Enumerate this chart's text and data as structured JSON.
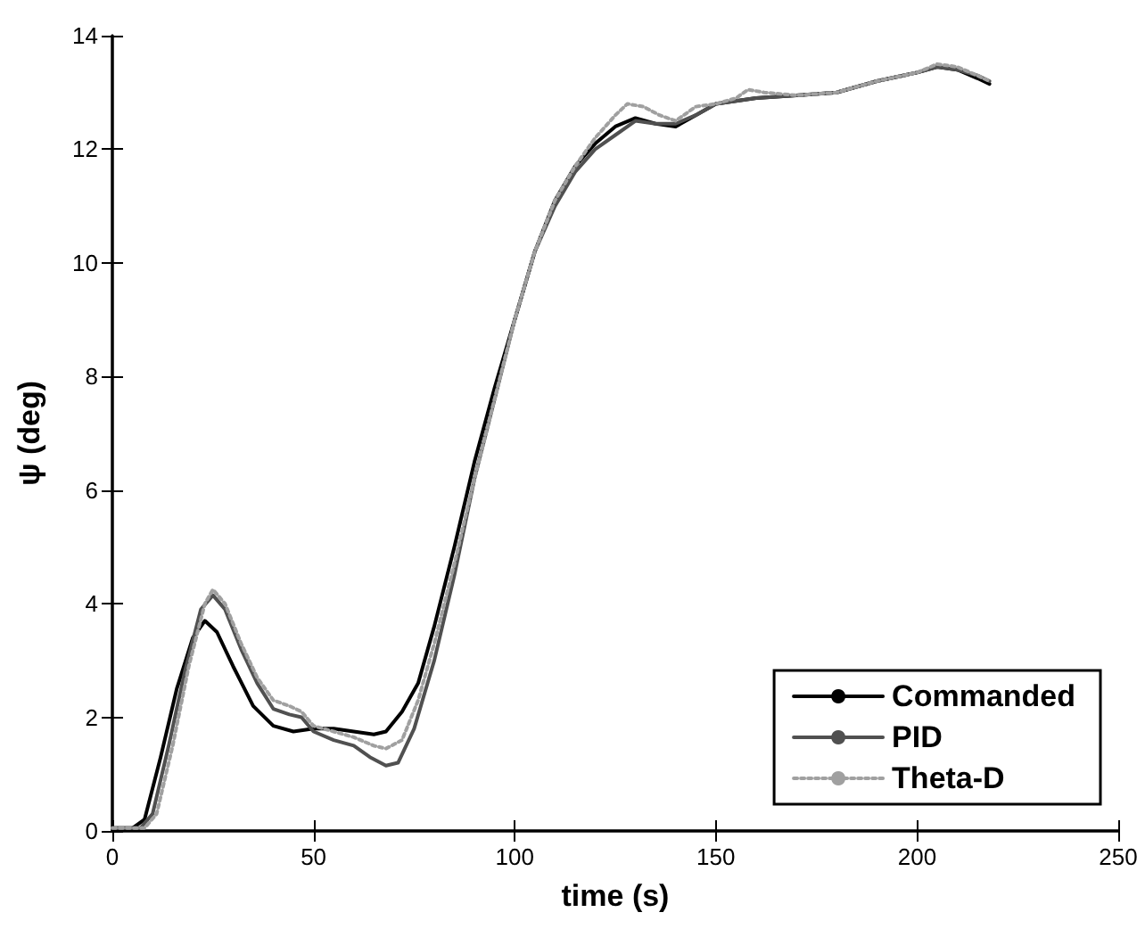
{
  "chart_data": {
    "type": "line",
    "xlabel": "time (s)",
    "ylabel": "ψ (deg)",
    "xlim": [
      0,
      250
    ],
    "xticks": [
      0,
      50,
      100,
      150,
      200,
      250
    ],
    "ylim": [
      0,
      14
    ],
    "yticks": [
      0,
      2,
      4,
      6,
      8,
      10,
      12,
      14
    ],
    "grid": false,
    "legend": "bottom right",
    "marker": "none",
    "series": [
      {
        "name": "Commanded",
        "color": "#000000",
        "line_style": "solid",
        "x": [
          0,
          5,
          8,
          12,
          16,
          20,
          23,
          26,
          30,
          35,
          40,
          45,
          50,
          55,
          60,
          65,
          68,
          72,
          76,
          80,
          85,
          90,
          95,
          100,
          105,
          110,
          115,
          120,
          125,
          130,
          135,
          140,
          145,
          150,
          160,
          170,
          180,
          190,
          200,
          205,
          210,
          215,
          218
        ],
        "values": [
          0.05,
          0.05,
          0.2,
          1.3,
          2.5,
          3.4,
          3.7,
          3.5,
          2.9,
          2.2,
          1.85,
          1.75,
          1.8,
          1.8,
          1.75,
          1.7,
          1.75,
          2.1,
          2.6,
          3.6,
          5.0,
          6.5,
          7.8,
          9.0,
          10.2,
          11.1,
          11.7,
          12.1,
          12.4,
          12.55,
          12.45,
          12.4,
          12.6,
          12.8,
          12.9,
          12.95,
          13.0,
          13.2,
          13.35,
          13.45,
          13.4,
          13.25,
          13.15
        ]
      },
      {
        "name": "PID",
        "color": "#505050",
        "line_style": "solid",
        "x": [
          0,
          7,
          10,
          14,
          18,
          22,
          25,
          28,
          32,
          36,
          40,
          44,
          47,
          50,
          55,
          60,
          64,
          68,
          71,
          75,
          80,
          85,
          90,
          95,
          100,
          105,
          110,
          115,
          120,
          125,
          130,
          135,
          140,
          145,
          150,
          160,
          170,
          180,
          190,
          200,
          205,
          210,
          215,
          218
        ],
        "values": [
          0.05,
          0.05,
          0.3,
          1.5,
          2.8,
          3.9,
          4.15,
          3.9,
          3.2,
          2.6,
          2.15,
          2.05,
          2.0,
          1.75,
          1.6,
          1.5,
          1.3,
          1.15,
          1.2,
          1.8,
          3.0,
          4.5,
          6.2,
          7.6,
          9.0,
          10.2,
          11.0,
          11.6,
          12.0,
          12.25,
          12.5,
          12.45,
          12.45,
          12.6,
          12.8,
          12.9,
          12.95,
          13.0,
          13.2,
          13.35,
          13.45,
          13.4,
          13.3,
          13.2
        ]
      },
      {
        "name": "Theta-D",
        "color": "#a0a0a0",
        "line_style": "dotted",
        "x": [
          0,
          8,
          11,
          15,
          19,
          23,
          25,
          28,
          32,
          36,
          40,
          44,
          47,
          50,
          55,
          60,
          65,
          68,
          72,
          76,
          80,
          85,
          90,
          95,
          100,
          105,
          110,
          115,
          120,
          125,
          128,
          132,
          136,
          140,
          145,
          150,
          155,
          158,
          162,
          170,
          180,
          190,
          200,
          205,
          210,
          215,
          218
        ],
        "values": [
          0.05,
          0.05,
          0.3,
          1.5,
          2.9,
          4.0,
          4.25,
          4.0,
          3.3,
          2.7,
          2.3,
          2.2,
          2.1,
          1.85,
          1.75,
          1.65,
          1.5,
          1.45,
          1.6,
          2.3,
          3.3,
          4.7,
          6.2,
          7.6,
          9.0,
          10.2,
          11.1,
          11.7,
          12.2,
          12.6,
          12.8,
          12.75,
          12.6,
          12.5,
          12.75,
          12.8,
          12.9,
          13.05,
          13.0,
          12.95,
          13.0,
          13.2,
          13.35,
          13.5,
          13.45,
          13.3,
          13.2
        ]
      }
    ]
  }
}
